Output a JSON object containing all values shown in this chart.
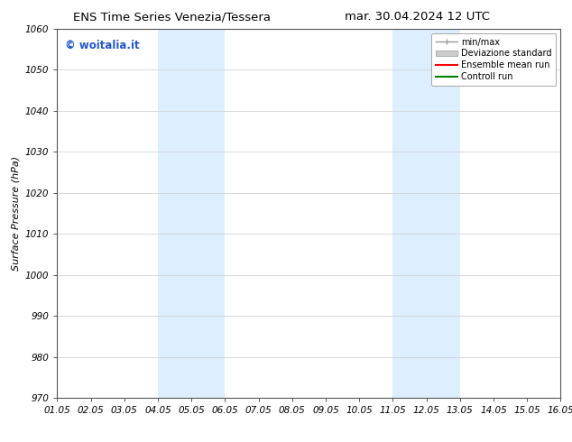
{
  "title_left": "ENS Time Series Venezia/Tessera",
  "title_right": "mar. 30.04.2024 12 UTC",
  "ylabel": "Surface Pressure (hPa)",
  "xlabel": "",
  "n_xticks": 16,
  "xlim": [
    0,
    15
  ],
  "ylim": [
    970,
    1060
  ],
  "yticks": [
    970,
    980,
    990,
    1000,
    1010,
    1020,
    1030,
    1040,
    1050,
    1060
  ],
  "xtick_labels": [
    "01.05",
    "02.05",
    "03.05",
    "04.05",
    "05.05",
    "06.05",
    "07.05",
    "08.05",
    "09.05",
    "10.05",
    "11.05",
    "12.05",
    "13.05",
    "14.05",
    "15.05",
    "16.05"
  ],
  "shaded_bands": [
    {
      "x_start": 3,
      "x_end": 5,
      "color": "#ddeeff"
    },
    {
      "x_start": 10,
      "x_end": 12,
      "color": "#ddeeff"
    }
  ],
  "watermark_text": "© woitalia.it",
  "watermark_color": "#2255cc",
  "legend_entries": [
    {
      "label": "min/max",
      "color": "#999999",
      "style": "errorbar"
    },
    {
      "label": "Deviazione standard",
      "color": "#cccccc",
      "style": "band"
    },
    {
      "label": "Ensemble mean run",
      "color": "red",
      "style": "line"
    },
    {
      "label": "Controll run",
      "color": "green",
      "style": "line"
    }
  ],
  "background_color": "#ffffff",
  "grid_color": "#cccccc",
  "title_fontsize": 9.5,
  "tick_fontsize": 7.5,
  "ylabel_fontsize": 8,
  "watermark_fontsize": 8.5,
  "legend_fontsize": 7
}
